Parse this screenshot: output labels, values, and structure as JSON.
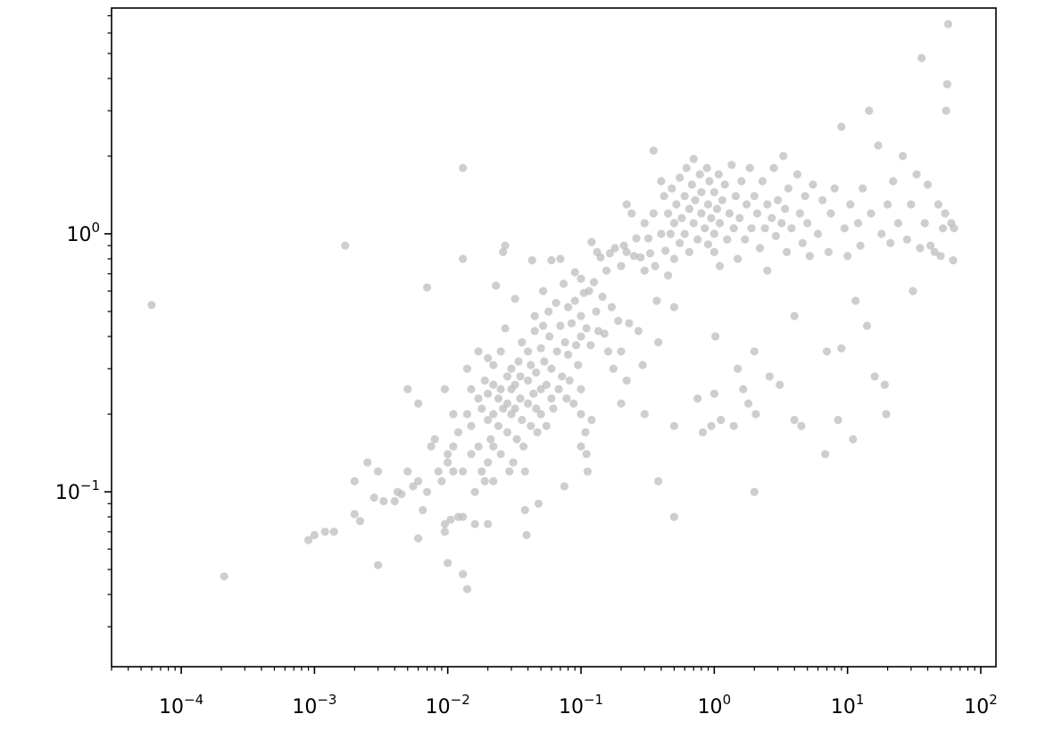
{
  "chart_data": {
    "type": "scatter",
    "title": "",
    "xlabel": "",
    "ylabel": "",
    "x_scale": "log",
    "y_scale": "log",
    "xlim": [
      3e-05,
      130
    ],
    "ylim": [
      0.021,
      7.5
    ],
    "grid": false,
    "legend": null,
    "marker_color": "#bdbdbd",
    "marker_alpha": 0.75,
    "x_ticks": [
      {
        "value": 0.0001,
        "base": "10",
        "exp": "−4"
      },
      {
        "value": 0.001,
        "base": "10",
        "exp": "−3"
      },
      {
        "value": 0.01,
        "base": "10",
        "exp": "−2"
      },
      {
        "value": 0.1,
        "base": "10",
        "exp": "−1"
      },
      {
        "value": 1,
        "base": "10",
        "exp": "0"
      },
      {
        "value": 10,
        "base": "10",
        "exp": "1"
      },
      {
        "value": 100,
        "base": "10",
        "exp": "2"
      }
    ],
    "y_ticks": [
      {
        "value": 0.1,
        "base": "10",
        "exp": "−1"
      },
      {
        "value": 1,
        "base": "10",
        "exp": "0"
      }
    ],
    "points": [
      [
        6e-05,
        0.53
      ],
      [
        0.00021,
        0.047
      ],
      [
        0.0009,
        0.065
      ],
      [
        0.001,
        0.068
      ],
      [
        0.0012,
        0.07
      ],
      [
        0.0014,
        0.07
      ],
      [
        0.0017,
        0.9
      ],
      [
        0.002,
        0.11
      ],
      [
        0.002,
        0.082
      ],
      [
        0.0022,
        0.077
      ],
      [
        0.0025,
        0.13
      ],
      [
        0.0028,
        0.095
      ],
      [
        0.003,
        0.12
      ],
      [
        0.003,
        0.052
      ],
      [
        0.0033,
        0.092
      ],
      [
        0.004,
        0.092
      ],
      [
        0.0042,
        0.1
      ],
      [
        0.0045,
        0.098
      ],
      [
        0.005,
        0.25
      ],
      [
        0.005,
        0.12
      ],
      [
        0.0055,
        0.105
      ],
      [
        0.006,
        0.11
      ],
      [
        0.006,
        0.22
      ],
      [
        0.006,
        0.066
      ],
      [
        0.0065,
        0.085
      ],
      [
        0.007,
        0.62
      ],
      [
        0.007,
        0.1
      ],
      [
        0.0075,
        0.15
      ],
      [
        0.008,
        0.16
      ],
      [
        0.0085,
        0.12
      ],
      [
        0.009,
        0.11
      ],
      [
        0.0095,
        0.25
      ],
      [
        0.0095,
        0.075
      ],
      [
        0.0095,
        0.07
      ],
      [
        0.01,
        0.053
      ],
      [
        0.01,
        0.14
      ],
      [
        0.01,
        0.13
      ],
      [
        0.0105,
        0.078
      ],
      [
        0.011,
        0.2
      ],
      [
        0.011,
        0.15
      ],
      [
        0.011,
        0.12
      ],
      [
        0.012,
        0.17
      ],
      [
        0.012,
        0.08
      ],
      [
        0.013,
        1.8
      ],
      [
        0.013,
        0.8
      ],
      [
        0.013,
        0.12
      ],
      [
        0.013,
        0.08
      ],
      [
        0.013,
        0.048
      ],
      [
        0.014,
        0.042
      ],
      [
        0.014,
        0.3
      ],
      [
        0.014,
        0.2
      ],
      [
        0.015,
        0.25
      ],
      [
        0.015,
        0.18
      ],
      [
        0.015,
        0.14
      ],
      [
        0.016,
        0.1
      ],
      [
        0.016,
        0.075
      ],
      [
        0.017,
        0.35
      ],
      [
        0.017,
        0.23
      ],
      [
        0.017,
        0.15
      ],
      [
        0.018,
        0.12
      ],
      [
        0.018,
        0.21
      ],
      [
        0.019,
        0.27
      ],
      [
        0.019,
        0.11
      ],
      [
        0.02,
        0.33
      ],
      [
        0.02,
        0.24
      ],
      [
        0.02,
        0.19
      ],
      [
        0.02,
        0.13
      ],
      [
        0.02,
        0.075
      ],
      [
        0.021,
        0.16
      ],
      [
        0.022,
        0.31
      ],
      [
        0.022,
        0.26
      ],
      [
        0.022,
        0.2
      ],
      [
        0.022,
        0.15
      ],
      [
        0.022,
        0.11
      ],
      [
        0.023,
        0.63
      ],
      [
        0.024,
        0.23
      ],
      [
        0.024,
        0.18
      ],
      [
        0.025,
        0.25
      ],
      [
        0.025,
        0.14
      ],
      [
        0.025,
        0.35
      ],
      [
        0.026,
        0.21
      ],
      [
        0.026,
        0.85
      ],
      [
        0.027,
        0.9
      ],
      [
        0.027,
        0.43
      ],
      [
        0.028,
        0.28
      ],
      [
        0.028,
        0.22
      ],
      [
        0.028,
        0.17
      ],
      [
        0.029,
        0.12
      ],
      [
        0.03,
        0.3
      ],
      [
        0.03,
        0.25
      ],
      [
        0.03,
        0.2
      ],
      [
        0.031,
        0.13
      ],
      [
        0.032,
        0.56
      ],
      [
        0.032,
        0.26
      ],
      [
        0.032,
        0.21
      ],
      [
        0.033,
        0.16
      ],
      [
        0.034,
        0.32
      ],
      [
        0.035,
        0.28
      ],
      [
        0.035,
        0.23
      ],
      [
        0.036,
        0.38
      ],
      [
        0.036,
        0.19
      ],
      [
        0.037,
        0.15
      ],
      [
        0.038,
        0.12
      ],
      [
        0.038,
        0.085
      ],
      [
        0.039,
        0.068
      ],
      [
        0.04,
        0.35
      ],
      [
        0.04,
        0.27
      ],
      [
        0.04,
        0.22
      ],
      [
        0.042,
        0.31
      ],
      [
        0.042,
        0.18
      ],
      [
        0.043,
        0.79
      ],
      [
        0.044,
        0.24
      ],
      [
        0.045,
        0.48
      ],
      [
        0.045,
        0.42
      ],
      [
        0.046,
        0.29
      ],
      [
        0.046,
        0.21
      ],
      [
        0.047,
        0.17
      ],
      [
        0.048,
        0.09
      ],
      [
        0.05,
        0.36
      ],
      [
        0.05,
        0.25
      ],
      [
        0.05,
        0.2
      ],
      [
        0.052,
        0.6
      ],
      [
        0.052,
        0.44
      ],
      [
        0.053,
        0.32
      ],
      [
        0.055,
        0.26
      ],
      [
        0.055,
        0.18
      ],
      [
        0.057,
        0.5
      ],
      [
        0.058,
        0.4
      ],
      [
        0.06,
        0.79
      ],
      [
        0.06,
        0.3
      ],
      [
        0.06,
        0.23
      ],
      [
        0.062,
        0.21
      ],
      [
        0.065,
        0.54
      ],
      [
        0.066,
        0.35
      ],
      [
        0.068,
        0.25
      ],
      [
        0.07,
        0.8
      ],
      [
        0.07,
        0.44
      ],
      [
        0.072,
        0.28
      ],
      [
        0.074,
        0.64
      ],
      [
        0.075,
        0.105
      ],
      [
        0.076,
        0.38
      ],
      [
        0.078,
        0.23
      ],
      [
        0.08,
        0.52
      ],
      [
        0.08,
        0.34
      ],
      [
        0.082,
        0.27
      ],
      [
        0.085,
        0.45
      ],
      [
        0.088,
        0.22
      ],
      [
        0.09,
        0.71
      ],
      [
        0.09,
        0.55
      ],
      [
        0.092,
        0.37
      ],
      [
        0.095,
        0.31
      ],
      [
        0.1,
        0.67
      ],
      [
        0.1,
        0.48
      ],
      [
        0.1,
        0.4
      ],
      [
        0.1,
        0.25
      ],
      [
        0.1,
        0.2
      ],
      [
        0.1,
        0.15
      ],
      [
        0.105,
        0.59
      ],
      [
        0.108,
        0.17
      ],
      [
        0.11,
        0.43
      ],
      [
        0.11,
        0.14
      ],
      [
        0.112,
        0.12
      ],
      [
        0.115,
        0.6
      ],
      [
        0.118,
        0.37
      ],
      [
        0.12,
        0.19
      ],
      [
        0.12,
        0.93
      ],
      [
        0.125,
        0.65
      ],
      [
        0.13,
        0.5
      ],
      [
        0.132,
        0.85
      ],
      [
        0.135,
        0.42
      ],
      [
        0.14,
        0.81
      ],
      [
        0.145,
        0.57
      ],
      [
        0.15,
        0.41
      ],
      [
        0.155,
        0.72
      ],
      [
        0.16,
        0.35
      ],
      [
        0.165,
        0.84
      ],
      [
        0.17,
        0.52
      ],
      [
        0.175,
        0.3
      ],
      [
        0.18,
        0.88
      ],
      [
        0.19,
        0.46
      ],
      [
        0.2,
        0.35
      ],
      [
        0.2,
        0.22
      ],
      [
        0.2,
        0.75
      ],
      [
        0.21,
        0.9
      ],
      [
        0.22,
        1.3
      ],
      [
        0.22,
        0.85
      ],
      [
        0.22,
        0.27
      ],
      [
        0.23,
        0.45
      ],
      [
        0.24,
        1.2
      ],
      [
        0.25,
        0.82
      ],
      [
        0.26,
        0.96
      ],
      [
        0.27,
        0.42
      ],
      [
        0.28,
        0.81
      ],
      [
        0.29,
        0.31
      ],
      [
        0.3,
        1.1
      ],
      [
        0.3,
        0.72
      ],
      [
        0.3,
        0.2
      ],
      [
        0.32,
        0.96
      ],
      [
        0.33,
        0.84
      ],
      [
        0.35,
        2.1
      ],
      [
        0.35,
        1.2
      ],
      [
        0.36,
        0.75
      ],
      [
        0.37,
        0.55
      ],
      [
        0.38,
        0.38
      ],
      [
        0.38,
        0.11
      ],
      [
        0.4,
        1.6
      ],
      [
        0.4,
        1.0
      ],
      [
        0.42,
        1.4
      ],
      [
        0.43,
        0.86
      ],
      [
        0.45,
        1.2
      ],
      [
        0.45,
        0.69
      ],
      [
        0.47,
        1.0
      ],
      [
        0.48,
        1.5
      ],
      [
        0.5,
        1.1
      ],
      [
        0.5,
        0.8
      ],
      [
        0.5,
        0.52
      ],
      [
        0.5,
        0.18
      ],
      [
        0.5,
        0.08
      ],
      [
        0.52,
        1.3
      ],
      [
        0.55,
        1.65
      ],
      [
        0.55,
        0.92
      ],
      [
        0.57,
        1.15
      ],
      [
        0.6,
        1.4
      ],
      [
        0.6,
        1.0
      ],
      [
        0.62,
        1.8
      ],
      [
        0.65,
        1.25
      ],
      [
        0.65,
        0.85
      ],
      [
        0.68,
        1.55
      ],
      [
        0.7,
        1.1
      ],
      [
        0.7,
        1.95
      ],
      [
        0.72,
        1.35
      ],
      [
        0.75,
        0.95
      ],
      [
        0.75,
        0.23
      ],
      [
        0.78,
        1.7
      ],
      [
        0.8,
        1.2
      ],
      [
        0.8,
        1.45
      ],
      [
        0.82,
        0.17
      ],
      [
        0.85,
        1.05
      ],
      [
        0.88,
        1.8
      ],
      [
        0.9,
        1.3
      ],
      [
        0.9,
        0.91
      ],
      [
        0.92,
        1.6
      ],
      [
        0.95,
        1.15
      ],
      [
        0.95,
        0.18
      ],
      [
        1.0,
        1.45
      ],
      [
        1.0,
        1.0
      ],
      [
        1.0,
        0.85
      ],
      [
        1.0,
        0.24
      ],
      [
        1.02,
        0.4
      ],
      [
        1.05,
        1.25
      ],
      [
        1.08,
        1.7
      ],
      [
        1.1,
        1.1
      ],
      [
        1.1,
        0.75
      ],
      [
        1.12,
        0.19
      ],
      [
        1.15,
        1.35
      ],
      [
        1.2,
        1.55
      ],
      [
        1.25,
        0.95
      ],
      [
        1.3,
        1.2
      ],
      [
        1.35,
        1.85
      ],
      [
        1.4,
        1.05
      ],
      [
        1.4,
        0.18
      ],
      [
        1.45,
        1.4
      ],
      [
        1.5,
        0.8
      ],
      [
        1.5,
        0.3
      ],
      [
        1.55,
        1.15
      ],
      [
        1.6,
        1.6
      ],
      [
        1.65,
        0.25
      ],
      [
        1.7,
        0.95
      ],
      [
        1.75,
        1.3
      ],
      [
        1.8,
        0.22
      ],
      [
        1.85,
        1.8
      ],
      [
        1.9,
        1.05
      ],
      [
        2.0,
        1.4
      ],
      [
        2.0,
        0.35
      ],
      [
        2.0,
        0.1
      ],
      [
        2.05,
        0.2
      ],
      [
        2.1,
        1.2
      ],
      [
        2.2,
        0.88
      ],
      [
        2.3,
        1.6
      ],
      [
        2.4,
        1.05
      ],
      [
        2.5,
        1.3
      ],
      [
        2.5,
        0.72
      ],
      [
        2.6,
        0.28
      ],
      [
        2.7,
        1.15
      ],
      [
        2.8,
        1.8
      ],
      [
        2.9,
        0.98
      ],
      [
        3.0,
        1.35
      ],
      [
        3.1,
        0.26
      ],
      [
        3.2,
        1.1
      ],
      [
        3.3,
        2.0
      ],
      [
        3.4,
        1.25
      ],
      [
        3.5,
        0.85
      ],
      [
        3.6,
        1.5
      ],
      [
        3.8,
        1.05
      ],
      [
        4.0,
        0.48
      ],
      [
        4.0,
        0.19
      ],
      [
        4.2,
        1.7
      ],
      [
        4.4,
        1.2
      ],
      [
        4.5,
        0.18
      ],
      [
        4.6,
        0.92
      ],
      [
        4.8,
        1.4
      ],
      [
        5.0,
        1.1
      ],
      [
        5.2,
        0.82
      ],
      [
        5.5,
        1.55
      ],
      [
        6.0,
        1.0
      ],
      [
        6.5,
        1.35
      ],
      [
        6.8,
        0.14
      ],
      [
        7.0,
        0.35
      ],
      [
        7.2,
        0.85
      ],
      [
        7.5,
        1.2
      ],
      [
        8.0,
        1.5
      ],
      [
        8.5,
        0.19
      ],
      [
        9.0,
        2.6
      ],
      [
        9.0,
        0.36
      ],
      [
        9.5,
        1.05
      ],
      [
        10.0,
        0.82
      ],
      [
        10.5,
        1.3
      ],
      [
        11.0,
        0.16
      ],
      [
        11.5,
        0.55
      ],
      [
        12.0,
        1.1
      ],
      [
        12.5,
        0.9
      ],
      [
        13.0,
        1.5
      ],
      [
        14.0,
        0.44
      ],
      [
        14.5,
        3.0
      ],
      [
        15.0,
        1.2
      ],
      [
        16.0,
        0.28
      ],
      [
        17.0,
        2.2
      ],
      [
        18.0,
        1.0
      ],
      [
        19.0,
        0.26
      ],
      [
        19.5,
        0.2
      ],
      [
        20.0,
        1.3
      ],
      [
        21.0,
        0.92
      ],
      [
        22.0,
        1.6
      ],
      [
        24.0,
        1.1
      ],
      [
        26.0,
        2.0
      ],
      [
        28.0,
        0.95
      ],
      [
        30.0,
        1.3
      ],
      [
        31.0,
        0.6
      ],
      [
        33.0,
        1.7
      ],
      [
        35.0,
        0.88
      ],
      [
        36.0,
        4.8
      ],
      [
        38.0,
        1.1
      ],
      [
        40.0,
        1.55
      ],
      [
        42.0,
        0.9
      ],
      [
        45.0,
        0.85
      ],
      [
        48.0,
        1.3
      ],
      [
        50.0,
        0.82
      ],
      [
        52.0,
        1.05
      ],
      [
        54.0,
        1.2
      ],
      [
        55.0,
        3.0
      ],
      [
        56.0,
        3.8
      ],
      [
        57.0,
        6.5
      ],
      [
        60.0,
        1.1
      ],
      [
        62.0,
        0.79
      ],
      [
        63.0,
        1.05
      ]
    ]
  }
}
